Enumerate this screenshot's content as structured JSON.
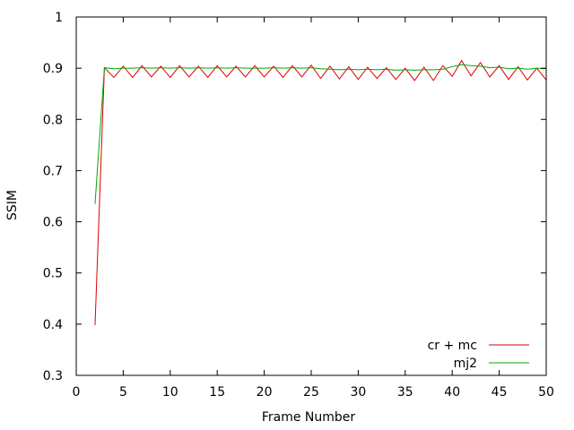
{
  "chart_data": {
    "type": "line",
    "title": "",
    "xlabel": "Frame Number",
    "ylabel": "SSIM",
    "xlim": [
      0,
      50
    ],
    "ylim": [
      0.3,
      1.0
    ],
    "xticks": [
      0,
      5,
      10,
      15,
      20,
      25,
      30,
      35,
      40,
      45,
      50
    ],
    "yticks": [
      0.3,
      0.4,
      0.5,
      0.6,
      0.7,
      0.8,
      0.9,
      1.0
    ],
    "ytick_labels": [
      "0.3",
      "0.4",
      "0.5",
      "0.6",
      "0.7",
      "0.8",
      "0.9",
      "1"
    ],
    "grid": false,
    "legend_position": "bottom-right",
    "series": [
      {
        "name": "cr + mc",
        "color": "#dd0000",
        "x": [
          2,
          3,
          4,
          5,
          6,
          7,
          8,
          9,
          10,
          11,
          12,
          13,
          14,
          15,
          16,
          17,
          18,
          19,
          20,
          21,
          22,
          23,
          24,
          25,
          26,
          27,
          28,
          29,
          30,
          31,
          32,
          33,
          34,
          35,
          36,
          37,
          38,
          39,
          40,
          41,
          42,
          43,
          44,
          45,
          46,
          47,
          48,
          49,
          50
        ],
        "y": [
          0.398,
          0.901,
          0.882,
          0.904,
          0.882,
          0.905,
          0.883,
          0.904,
          0.882,
          0.905,
          0.883,
          0.904,
          0.882,
          0.905,
          0.883,
          0.904,
          0.883,
          0.905,
          0.883,
          0.904,
          0.882,
          0.905,
          0.883,
          0.906,
          0.88,
          0.904,
          0.879,
          0.903,
          0.878,
          0.902,
          0.88,
          0.901,
          0.878,
          0.9,
          0.876,
          0.902,
          0.876,
          0.905,
          0.884,
          0.915,
          0.885,
          0.911,
          0.883,
          0.905,
          0.878,
          0.903,
          0.877,
          0.9,
          0.877
        ]
      },
      {
        "name": "mj2",
        "color": "#00aa00",
        "x": [
          2,
          3,
          4,
          5,
          6,
          7,
          8,
          9,
          10,
          11,
          12,
          13,
          14,
          15,
          16,
          17,
          18,
          19,
          20,
          21,
          22,
          23,
          24,
          25,
          26,
          27,
          28,
          29,
          30,
          31,
          32,
          33,
          34,
          35,
          36,
          37,
          38,
          39,
          40,
          41,
          42,
          43,
          44,
          45,
          46,
          47,
          48,
          49,
          50
        ],
        "y": [
          0.635,
          0.901,
          0.899,
          0.9,
          0.9,
          0.901,
          0.9,
          0.901,
          0.9,
          0.901,
          0.9,
          0.901,
          0.9,
          0.901,
          0.9,
          0.901,
          0.9,
          0.9,
          0.9,
          0.901,
          0.9,
          0.901,
          0.9,
          0.901,
          0.899,
          0.898,
          0.897,
          0.898,
          0.897,
          0.898,
          0.897,
          0.898,
          0.896,
          0.897,
          0.896,
          0.897,
          0.897,
          0.898,
          0.903,
          0.907,
          0.905,
          0.904,
          0.901,
          0.902,
          0.899,
          0.9,
          0.898,
          0.9,
          0.899
        ]
      }
    ]
  }
}
